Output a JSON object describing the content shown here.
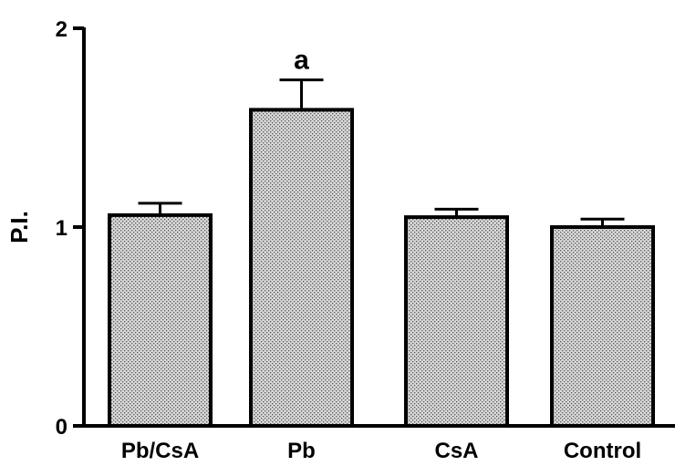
{
  "chart_data": {
    "type": "bar",
    "categories": [
      "Pb/CsA",
      "Pb",
      "CsA",
      "Control"
    ],
    "values": [
      1.06,
      1.59,
      1.05,
      1.0
    ],
    "errors": [
      0.06,
      0.15,
      0.04,
      0.04
    ],
    "annotations": [
      "",
      "a",
      "",
      ""
    ],
    "xlabel": "",
    "ylabel": "P.I.",
    "ylim": [
      0,
      2
    ],
    "yticks": [
      "0",
      "1",
      "2"
    ],
    "grid": false,
    "legend": "none",
    "bar_pattern": "dotted",
    "colors": {
      "bar_fill": "#d8d8d8",
      "dot": "#555555",
      "stroke": "#000000"
    }
  }
}
